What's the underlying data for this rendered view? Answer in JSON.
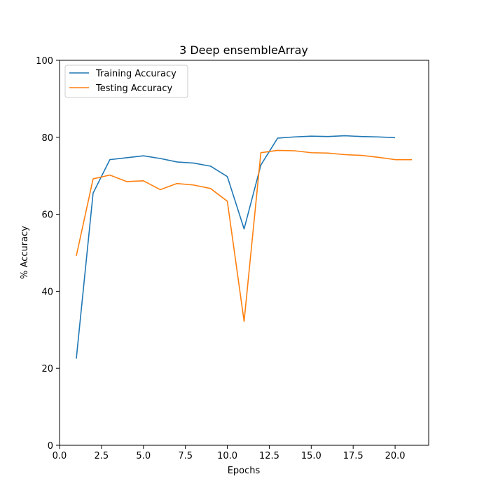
{
  "chart_data": {
    "type": "line",
    "title": "3 Deep ensembleArray",
    "xlabel": "Epochs",
    "ylabel": "% Accuracy",
    "xlim": [
      0,
      22
    ],
    "ylim": [
      0,
      100
    ],
    "xticks": [
      0.0,
      2.5,
      5.0,
      7.5,
      10.0,
      12.5,
      15.0,
      17.5,
      20.0
    ],
    "xtick_labels": [
      "0.0",
      "2.5",
      "5.0",
      "7.5",
      "10.0",
      "12.5",
      "15.0",
      "17.5",
      "20.0"
    ],
    "yticks": [
      0,
      20,
      40,
      60,
      80,
      100
    ],
    "ytick_labels": [
      "0",
      "20",
      "40",
      "60",
      "80",
      "100"
    ],
    "legend_position": "top-left",
    "series": [
      {
        "name": "Training Accuracy",
        "color": "#1f77b4",
        "x": [
          1,
          2,
          3,
          4,
          5,
          6,
          7,
          8,
          9,
          10,
          11,
          12,
          13,
          14,
          15,
          16,
          17,
          18,
          19,
          20
        ],
        "y": [
          22.5,
          65.5,
          74.2,
          74.7,
          75.2,
          74.5,
          73.6,
          73.3,
          72.5,
          69.8,
          56.2,
          72.8,
          79.8,
          80.1,
          80.3,
          80.2,
          80.4,
          80.2,
          80.1,
          79.9
        ]
      },
      {
        "name": "Testing Accuracy",
        "color": "#ff7f0e",
        "x": [
          1,
          2,
          3,
          4,
          5,
          6,
          7,
          8,
          9,
          10,
          11,
          12,
          13,
          14,
          15,
          16,
          17,
          18,
          19,
          20,
          21
        ],
        "y": [
          49.2,
          69.2,
          70.2,
          68.5,
          68.7,
          66.4,
          68.0,
          67.6,
          66.7,
          63.4,
          32.2,
          76.0,
          76.6,
          76.5,
          76.0,
          75.9,
          75.5,
          75.3,
          74.8,
          74.2,
          74.2
        ]
      }
    ]
  }
}
